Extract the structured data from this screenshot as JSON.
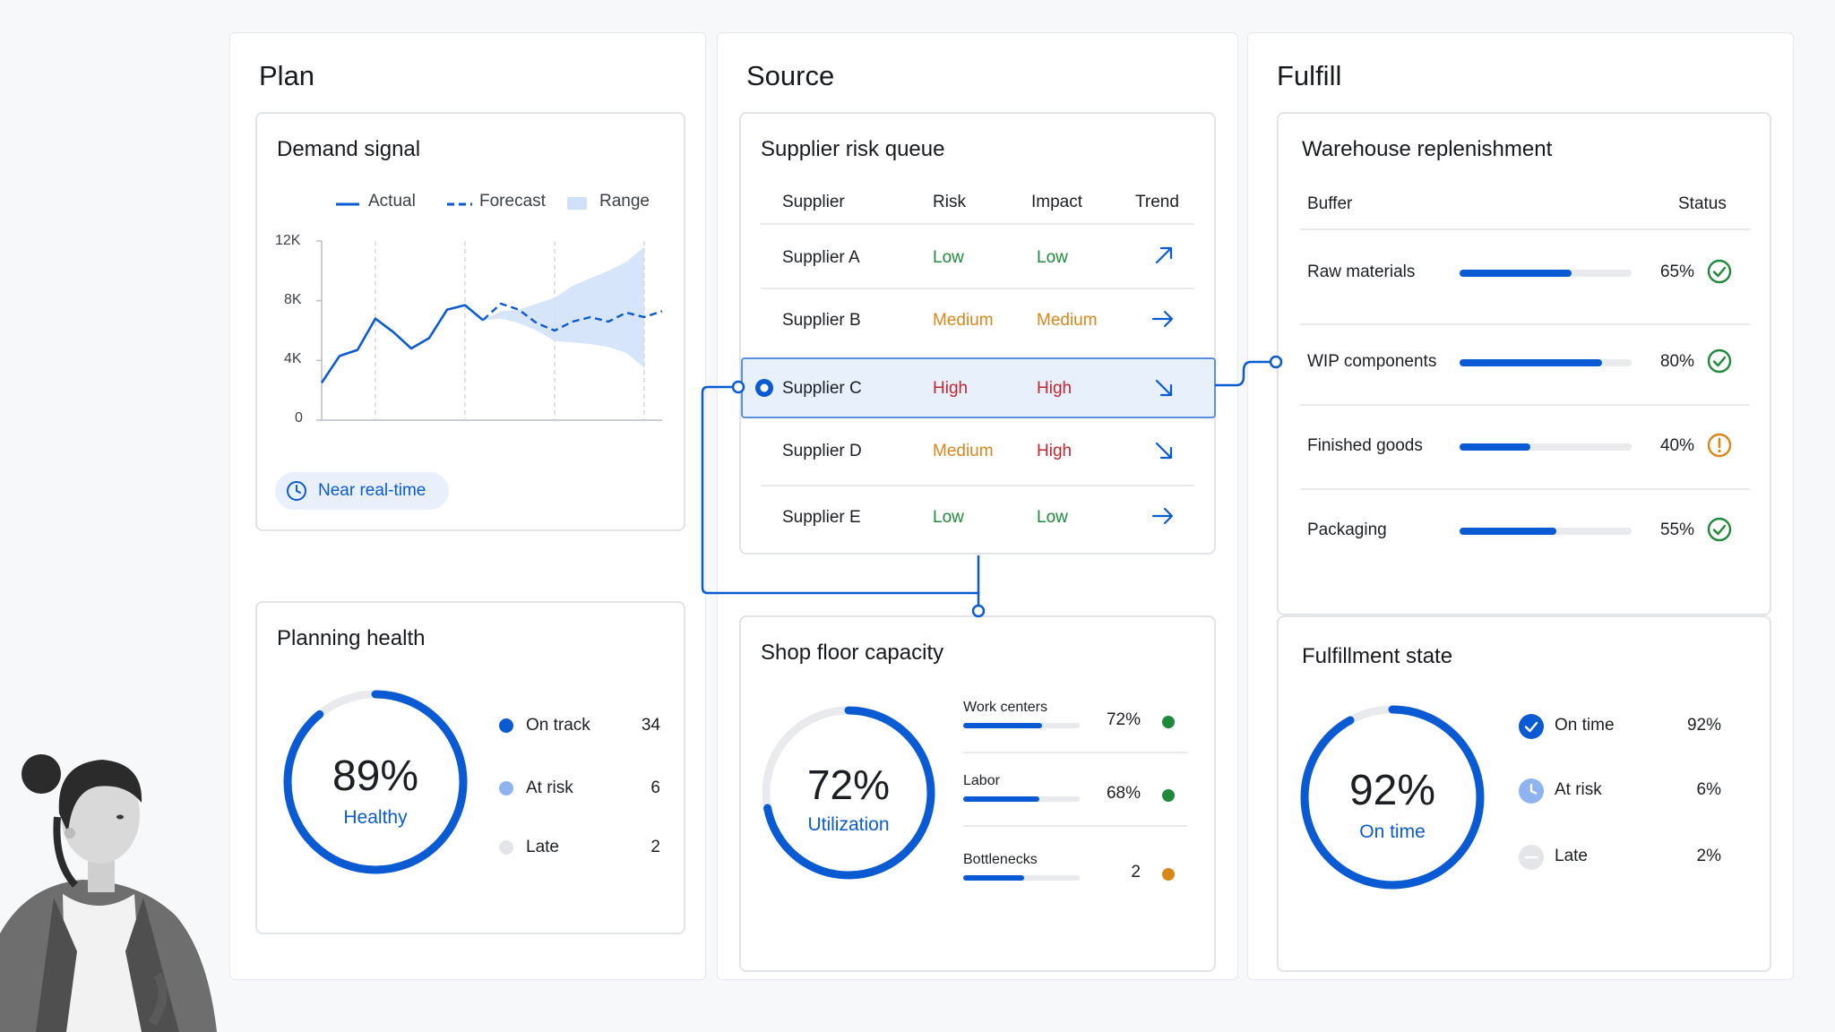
{
  "columns": {
    "plan": "Plan",
    "source": "Source",
    "fulfill": "Fulfill"
  },
  "demand_signal": {
    "title": "Demand signal",
    "legend": {
      "actual": "Actual",
      "forecast": "Forecast",
      "range": "Range"
    },
    "badge": "Near real-time",
    "chart_data": {
      "type": "line",
      "title": "Demand signal",
      "yticks": [
        "12K",
        "8K",
        "4K",
        "0"
      ],
      "ylim": [
        0,
        12000
      ],
      "series": [
        {
          "name": "Actual",
          "values": [
            2500,
            4300,
            4700,
            6800,
            5900,
            4800,
            5500,
            7400,
            7700,
            6700
          ]
        },
        {
          "name": "Forecast",
          "values": [
            null,
            null,
            null,
            null,
            null,
            null,
            null,
            null,
            null,
            6700,
            7800,
            7400,
            6500,
            6000,
            6600,
            6900,
            6600,
            7200,
            6900,
            7300
          ]
        }
      ],
      "range": {
        "name": "Range",
        "lower": [
          6700,
          6800,
          6500,
          6000,
          5300,
          5200,
          5100,
          4900,
          4500,
          3500
        ],
        "upper": [
          6700,
          7300,
          7400,
          7800,
          8200,
          9000,
          9500,
          10000,
          10600,
          11600
        ]
      }
    }
  },
  "planning_health": {
    "title": "Planning health",
    "value": "89%",
    "label": "Healthy",
    "percent": 89,
    "items": [
      {
        "label": "On track",
        "count": "34",
        "color": "#0a5bd3"
      },
      {
        "label": "At risk",
        "count": "6",
        "color": "#8fb3ee"
      },
      {
        "label": "Late",
        "count": "2",
        "color": "#e3e5e8"
      }
    ]
  },
  "supplier_risk": {
    "title": "Supplier risk queue",
    "headers": {
      "supplier": "Supplier",
      "risk": "Risk",
      "impact": "Impact",
      "trend": "Trend"
    },
    "rows": [
      {
        "supplier": "Supplier A",
        "risk": "Low",
        "impact": "Low",
        "trend": "up-right-arrow-icon"
      },
      {
        "supplier": "Supplier B",
        "risk": "Medium",
        "impact": "Medium",
        "trend": "right-arrow-icon"
      },
      {
        "supplier": "Supplier C",
        "risk": "High",
        "impact": "High",
        "trend": "down-right-arrow-icon",
        "selected": true
      },
      {
        "supplier": "Supplier D",
        "risk": "Medium",
        "impact": "High",
        "trend": "down-right-arrow-icon"
      },
      {
        "supplier": "Supplier E",
        "risk": "Low",
        "impact": "Low",
        "trend": "right-arrow-icon"
      }
    ],
    "colors": {
      "low": "#1f8a3a",
      "medium": "#d9861a",
      "high": "#c0282f"
    }
  },
  "shop_floor": {
    "title": "Shop floor capacity",
    "value": "72%",
    "label": "Utilization",
    "percent": 72,
    "items": [
      {
        "label": "Work centers",
        "value": "72%",
        "fill": 0.68,
        "status_color": "#1f8a3a"
      },
      {
        "label": "Labor",
        "value": "68%",
        "fill": 0.65,
        "status_color": "#1f8a3a"
      },
      {
        "label": "Bottlenecks",
        "value": "2",
        "fill": 0.52,
        "status_color": "#d9861a"
      }
    ]
  },
  "warehouse": {
    "title": "Warehouse replenishment",
    "headers": {
      "buffer": "Buffer",
      "status": "Status"
    },
    "rows": [
      {
        "label": "Raw materials",
        "value": "65%",
        "fill": 0.65,
        "status": "check-circle-icon"
      },
      {
        "label": "WIP components",
        "value": "80%",
        "fill": 0.83,
        "status": "check-circle-icon"
      },
      {
        "label": "Finished goods",
        "value": "40%",
        "fill": 0.41,
        "status": "warning-circle-icon"
      },
      {
        "label": "Packaging",
        "value": "55%",
        "fill": 0.56,
        "status": "check-circle-icon"
      }
    ]
  },
  "fulfillment": {
    "title": "Fulfillment state",
    "value": "92%",
    "label": "On time",
    "percent": 92,
    "items": [
      {
        "label": "On time",
        "value": "92%",
        "icon": "check-circle-icon"
      },
      {
        "label": "At risk",
        "value": "6%",
        "icon": "clock-circle-icon"
      },
      {
        "label": "Late",
        "value": "2%",
        "icon": "minus-circle-icon"
      }
    ]
  }
}
